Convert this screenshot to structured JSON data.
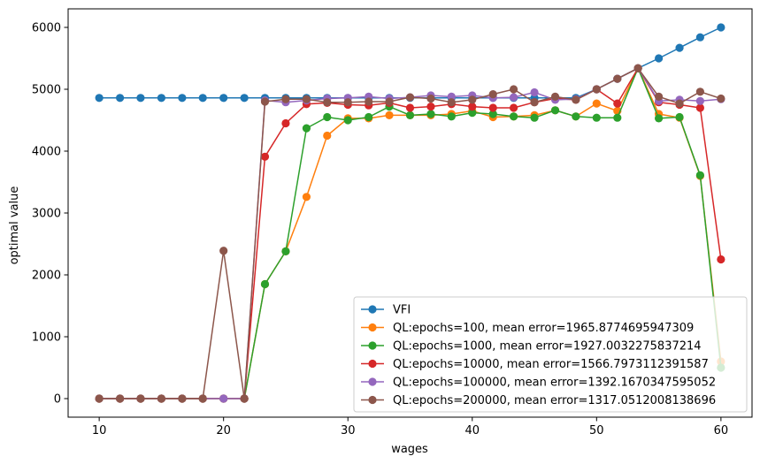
{
  "chart_data": {
    "type": "line",
    "title": "",
    "xlabel": "wages",
    "ylabel": "optimal value",
    "xlim": [
      7.5,
      62.5
    ],
    "ylim": [
      -300,
      6300
    ],
    "xticks": [
      10,
      20,
      30,
      40,
      50,
      60
    ],
    "yticks": [
      0,
      1000,
      2000,
      3000,
      4000,
      5000,
      6000
    ],
    "grid": false,
    "legend_position": "lower-right",
    "x": [
      10.0,
      11.67,
      13.33,
      15.0,
      16.67,
      18.33,
      20.0,
      21.67,
      23.33,
      25.0,
      26.67,
      28.33,
      30.0,
      31.67,
      33.33,
      35.0,
      36.67,
      38.33,
      40.0,
      41.67,
      43.33,
      45.0,
      46.67,
      48.33,
      50.0,
      51.67,
      53.33,
      55.0,
      56.67,
      58.33,
      60.0
    ],
    "series": [
      {
        "name": "VFI",
        "color": "#1f77b4",
        "values": [
          4860,
          4860,
          4860,
          4860,
          4860,
          4860,
          4860,
          4860,
          4860,
          4860,
          4860,
          4860,
          4860,
          4860,
          4860,
          4860,
          4860,
          4860,
          4860,
          4860,
          4860,
          4860,
          4860,
          4860,
          5000,
          5170,
          5340,
          5500,
          5670,
          5840,
          6000
        ]
      },
      {
        "name": "QL:epochs=100, mean error=1965.8774695947309",
        "color": "#ff7f0e",
        "values": [
          0,
          0,
          0,
          0,
          0,
          0,
          0,
          0,
          1850,
          2380,
          3260,
          4250,
          4530,
          4530,
          4580,
          4580,
          4580,
          4600,
          4650,
          4550,
          4560,
          4580,
          4660,
          4560,
          4770,
          4650,
          5340,
          4600,
          4540,
          3600,
          600
        ]
      },
      {
        "name": "QL:epochs=1000, mean error=1927.0032275837214",
        "color": "#2ca02c",
        "values": [
          0,
          0,
          0,
          0,
          0,
          0,
          0,
          0,
          1850,
          2380,
          4370,
          4550,
          4500,
          4550,
          4720,
          4580,
          4600,
          4560,
          4620,
          4600,
          4560,
          4540,
          4660,
          4560,
          4540,
          4540,
          5340,
          4530,
          4550,
          3610,
          500
        ]
      },
      {
        "name": "QL:epochs=10000, mean error=1566.7973112391587",
        "color": "#d62728",
        "values": [
          0,
          0,
          0,
          0,
          0,
          0,
          0,
          0,
          3910,
          4450,
          4760,
          4780,
          4750,
          4740,
          4780,
          4700,
          4720,
          4760,
          4720,
          4700,
          4700,
          4790,
          4850,
          4830,
          5000,
          4770,
          5340,
          4790,
          4750,
          4700,
          2250
        ]
      },
      {
        "name": "QL:epochs=100000, mean error=1392.1670347595052",
        "color": "#9467bd",
        "values": [
          0,
          0,
          0,
          0,
          0,
          0,
          0,
          0,
          4820,
          4790,
          4820,
          4850,
          4860,
          4880,
          4850,
          4870,
          4900,
          4880,
          4900,
          4860,
          4870,
          4950,
          4830,
          4840,
          5000,
          5170,
          5340,
          4810,
          4830,
          4810,
          4840
        ]
      },
      {
        "name": "QL:epochs=200000, mean error=1317.0512008138696",
        "color": "#8c564b",
        "values": [
          0,
          0,
          0,
          0,
          0,
          0,
          2390,
          0,
          4800,
          4840,
          4840,
          4790,
          4790,
          4800,
          4800,
          4870,
          4850,
          4790,
          4830,
          4920,
          5000,
          4790,
          4880,
          4830,
          5000,
          5170,
          5340,
          4880,
          4770,
          4960,
          4850
        ]
      }
    ]
  }
}
